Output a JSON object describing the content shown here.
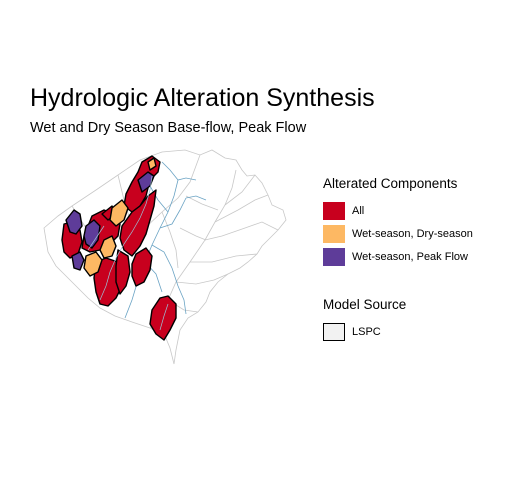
{
  "title": "Hydrologic Alteration Synthesis",
  "subtitle": "Wet and Dry Season Base-flow, Peak Flow",
  "legend_components": {
    "title": "Alterated Components",
    "items": [
      {
        "label": "All",
        "color": "#c8001e"
      },
      {
        "label": "Wet-season, Dry-season",
        "color": "#fdb863"
      },
      {
        "label": "Wet-season, Peak Flow",
        "color": "#5e3c99"
      }
    ]
  },
  "legend_source": {
    "title": "Model Source",
    "items": [
      {
        "label": "LSPC",
        "fill": "#f2f2f2",
        "stroke": "#000000"
      }
    ]
  },
  "colors": {
    "boundary": "#c8c8c8",
    "stream": "#6aa3c4",
    "outline": "#000000"
  }
}
